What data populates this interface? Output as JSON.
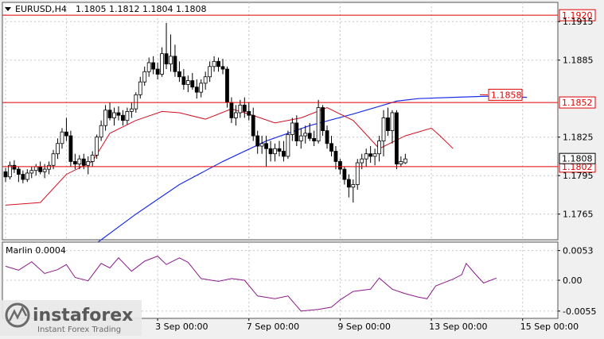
{
  "header": {
    "symbol_text": "EURUSD,H4",
    "ohlc_text": "1.1805 1.1812 1.1804 1.1808"
  },
  "indicator_label": "Marlin 0.0004",
  "colors": {
    "background": "#f0f0f0",
    "plot_bg": "#ffffff",
    "bull_body": "#ffffff",
    "bear_body": "#000000",
    "red_line": "#e00000",
    "red_ma": "#d01020",
    "blue_ma": "#1c2ee8",
    "oscillator": "#8b1a8b",
    "grid": "#c8c8c8",
    "box_fill": "#ffffff"
  },
  "watermark": {
    "brand": "instaforex",
    "tagline": "Instant Forex Trading",
    "icon": "instaforex-logo-icon"
  },
  "chart_data": [
    {
      "type": "candlestick",
      "symbol": "EURUSD",
      "timeframe": "H4",
      "ylim": [
        1.1745,
        1.193
      ],
      "y_ticks": [
        "1.1915",
        "1.1885",
        "1.1825",
        "1.1795",
        "1.1765"
      ],
      "x_ticks": [
        "3 Sep 00:00",
        "7 Sep 00:00",
        "9 Sep 00:00",
        "13 Sep 00:00",
        "15 Sep 00:00"
      ],
      "x_tick_bars": [
        35,
        56,
        77,
        98,
        119
      ],
      "horizontal_levels": [
        {
          "label": "1.1920",
          "value": 1.192
        },
        {
          "label": "1.1852",
          "value": 1.1852
        },
        {
          "label": "1.1802",
          "value": 1.1802
        }
      ],
      "current_price": {
        "label": "1.1808",
        "value": 1.1808
      },
      "ma_blue_label": {
        "label": "1.1858",
        "value": 1.1858
      },
      "candles": [
        [
          1.1798,
          1.1801,
          1.179,
          1.1794
        ],
        [
          1.1794,
          1.1806,
          1.1792,
          1.1803
        ],
        [
          1.1803,
          1.1807,
          1.1797,
          1.18
        ],
        [
          1.18,
          1.1802,
          1.179,
          1.1796
        ],
        [
          1.1796,
          1.1799,
          1.1789,
          1.1792
        ],
        [
          1.1792,
          1.18,
          1.179,
          1.1797
        ],
        [
          1.1797,
          1.1802,
          1.1793,
          1.1799
        ],
        [
          1.1799,
          1.1804,
          1.1795,
          1.1802
        ],
        [
          1.1802,
          1.1806,
          1.1796,
          1.1798
        ],
        [
          1.1798,
          1.1804,
          1.1793,
          1.18
        ],
        [
          1.18,
          1.1806,
          1.1796,
          1.1803
        ],
        [
          1.1803,
          1.1815,
          1.18,
          1.1812
        ],
        [
          1.1812,
          1.1824,
          1.1808,
          1.182
        ],
        [
          1.182,
          1.1832,
          1.1816,
          1.1829
        ],
        [
          1.1829,
          1.184,
          1.1822,
          1.1826
        ],
        [
          1.1826,
          1.183,
          1.1802,
          1.1806
        ],
        [
          1.1806,
          1.1812,
          1.18,
          1.1804
        ],
        [
          1.1804,
          1.1811,
          1.18,
          1.1808
        ],
        [
          1.1808,
          1.1812,
          1.18,
          1.1803
        ],
        [
          1.1803,
          1.181,
          1.1796,
          1.1806
        ],
        [
          1.1806,
          1.1814,
          1.1802,
          1.1811
        ],
        [
          1.1811,
          1.1827,
          1.1808,
          1.1825
        ],
        [
          1.1825,
          1.1838,
          1.1822,
          1.1834
        ],
        [
          1.1834,
          1.185,
          1.183,
          1.1846
        ],
        [
          1.1846,
          1.1852,
          1.1838,
          1.184
        ],
        [
          1.184,
          1.1848,
          1.1834,
          1.1844
        ],
        [
          1.1844,
          1.1849,
          1.1838,
          1.1842
        ],
        [
          1.1842,
          1.1846,
          1.1834,
          1.1838
        ],
        [
          1.1838,
          1.1848,
          1.1835,
          1.1845
        ],
        [
          1.1845,
          1.1852,
          1.184,
          1.1847
        ],
        [
          1.1847,
          1.186,
          1.1844,
          1.1858
        ],
        [
          1.1858,
          1.1872,
          1.1855,
          1.1868
        ],
        [
          1.1868,
          1.188,
          1.1865,
          1.1876
        ],
        [
          1.1876,
          1.1887,
          1.1872,
          1.1883
        ],
        [
          1.1883,
          1.1888,
          1.1874,
          1.1878
        ],
        [
          1.1878,
          1.1883,
          1.187,
          1.1874
        ],
        [
          1.1874,
          1.1895,
          1.1872,
          1.189
        ],
        [
          1.189,
          1.1914,
          1.1878,
          1.1882
        ],
        [
          1.1882,
          1.1905,
          1.1876,
          1.1888
        ],
        [
          1.1888,
          1.1897,
          1.1872,
          1.1876
        ],
        [
          1.1876,
          1.1884,
          1.1868,
          1.1872
        ],
        [
          1.1872,
          1.1878,
          1.1862,
          1.1866
        ],
        [
          1.1866,
          1.1873,
          1.186,
          1.1869
        ],
        [
          1.1869,
          1.1875,
          1.1862,
          1.1864
        ],
        [
          1.1864,
          1.187,
          1.1855,
          1.186
        ],
        [
          1.186,
          1.187,
          1.1856,
          1.1867
        ],
        [
          1.1867,
          1.1876,
          1.1862,
          1.1872
        ],
        [
          1.1872,
          1.1884,
          1.1868,
          1.188
        ],
        [
          1.188,
          1.1888,
          1.1876,
          1.1884
        ],
        [
          1.1884,
          1.1887,
          1.1876,
          1.188
        ],
        [
          1.188,
          1.1886,
          1.1874,
          1.1878
        ],
        [
          1.1878,
          1.188,
          1.1848,
          1.1852
        ],
        [
          1.1852,
          1.1856,
          1.1836,
          1.184
        ],
        [
          1.184,
          1.185,
          1.1834,
          1.1844
        ],
        [
          1.1844,
          1.1854,
          1.184,
          1.185
        ],
        [
          1.185,
          1.1856,
          1.184,
          1.1845
        ],
        [
          1.1845,
          1.1852,
          1.1838,
          1.1842
        ],
        [
          1.1842,
          1.1848,
          1.1822,
          1.1826
        ],
        [
          1.1826,
          1.183,
          1.1812,
          1.1818
        ],
        [
          1.1818,
          1.1826,
          1.1812,
          1.182
        ],
        [
          1.182,
          1.1826,
          1.1802,
          1.1816
        ],
        [
          1.1816,
          1.1822,
          1.1806,
          1.1812
        ],
        [
          1.1812,
          1.182,
          1.1806,
          1.1816
        ],
        [
          1.1816,
          1.1822,
          1.181,
          1.1814
        ],
        [
          1.1814,
          1.1822,
          1.1806,
          1.181
        ],
        [
          1.181,
          1.183,
          1.1808,
          1.1827
        ],
        [
          1.1827,
          1.184,
          1.1822,
          1.1836
        ],
        [
          1.1836,
          1.1842,
          1.1818,
          1.1822
        ],
        [
          1.1822,
          1.1832,
          1.1816,
          1.1826
        ],
        [
          1.1826,
          1.1834,
          1.182,
          1.1828
        ],
        [
          1.1828,
          1.1836,
          1.1822,
          1.1824
        ],
        [
          1.1824,
          1.183,
          1.1818,
          1.1822
        ],
        [
          1.1822,
          1.1854,
          1.182,
          1.1848
        ],
        [
          1.1848,
          1.185,
          1.1826,
          1.183
        ],
        [
          1.183,
          1.1834,
          1.1816,
          1.182
        ],
        [
          1.182,
          1.1826,
          1.181,
          1.1814
        ],
        [
          1.1814,
          1.1818,
          1.18,
          1.1806
        ],
        [
          1.1806,
          1.1808,
          1.1796,
          1.18
        ],
        [
          1.18,
          1.1802,
          1.1788,
          1.1792
        ],
        [
          1.1792,
          1.1796,
          1.1778,
          1.1786
        ],
        [
          1.1786,
          1.1792,
          1.1774,
          1.1788
        ],
        [
          1.1788,
          1.1808,
          1.1784,
          1.1805
        ],
        [
          1.1805,
          1.1812,
          1.18,
          1.1808
        ],
        [
          1.1808,
          1.1816,
          1.1802,
          1.1812
        ],
        [
          1.1812,
          1.1818,
          1.1805,
          1.181
        ],
        [
          1.181,
          1.1816,
          1.1803,
          1.1812
        ],
        [
          1.1812,
          1.1826,
          1.1806,
          1.1822
        ],
        [
          1.1822,
          1.1846,
          1.181,
          1.184
        ],
        [
          1.184,
          1.1848,
          1.1826,
          1.183
        ],
        [
          1.183,
          1.1846,
          1.182,
          1.1844
        ],
        [
          1.1844,
          1.1846,
          1.18,
          1.1804
        ],
        [
          1.1804,
          1.181,
          1.1802,
          1.1806
        ],
        [
          1.1805,
          1.1812,
          1.1804,
          1.1808
        ]
      ],
      "blue_ma": [
        [
          18,
          1.1735
        ],
        [
          30,
          1.1765
        ],
        [
          40,
          1.1788
        ],
        [
          50,
          1.1806
        ],
        [
          60,
          1.1822
        ],
        [
          70,
          1.1834
        ],
        [
          80,
          1.1843
        ],
        [
          86,
          1.1849
        ],
        [
          90,
          1.1853
        ],
        [
          95,
          1.1855
        ],
        [
          103,
          1.1856
        ],
        [
          112,
          1.1857
        ],
        [
          120,
          1.1856
        ]
      ],
      "red_ma": [
        [
          0,
          1.1772
        ],
        [
          8,
          1.1774
        ],
        [
          14,
          1.1796
        ],
        [
          20,
          1.1806
        ],
        [
          24,
          1.1828
        ],
        [
          30,
          1.1838
        ],
        [
          36,
          1.1845
        ],
        [
          40,
          1.1844
        ],
        [
          46,
          1.1839
        ],
        [
          52,
          1.1847
        ],
        [
          56,
          1.1843
        ],
        [
          62,
          1.1836
        ],
        [
          68,
          1.184
        ],
        [
          74,
          1.1848
        ],
        [
          80,
          1.1838
        ],
        [
          86,
          1.1816
        ],
        [
          92,
          1.1826
        ],
        [
          98,
          1.1832
        ],
        [
          100,
          1.1826
        ],
        [
          103,
          1.1816
        ]
      ]
    },
    {
      "type": "line",
      "name": "Marlin",
      "ylim": [
        -0.0068,
        0.0068
      ],
      "y_ticks": [
        "0.0053",
        "0.00",
        "-0.0055"
      ],
      "points": [
        [
          0,
          0.0025
        ],
        [
          3,
          0.0018
        ],
        [
          6,
          0.0033
        ],
        [
          9,
          0.0012
        ],
        [
          12,
          0.0019
        ],
        [
          14,
          0.0028
        ],
        [
          16,
          0.0005
        ],
        [
          19,
          -0.0001
        ],
        [
          22,
          0.003
        ],
        [
          24,
          0.0022
        ],
        [
          26,
          0.004
        ],
        [
          29,
          0.0016
        ],
        [
          32,
          0.0034
        ],
        [
          35,
          0.0043
        ],
        [
          37,
          0.0028
        ],
        [
          40,
          0.004
        ],
        [
          42,
          0.0032
        ],
        [
          45,
          0.0003
        ],
        [
          49,
          -0.0002
        ],
        [
          52,
          0.0003
        ],
        [
          55,
          0.0
        ],
        [
          58,
          -0.0028
        ],
        [
          62,
          -0.0033
        ],
        [
          65,
          -0.0028
        ],
        [
          68,
          -0.0055
        ],
        [
          72,
          -0.0052
        ],
        [
          75,
          -0.0048
        ],
        [
          77,
          -0.0035
        ],
        [
          80,
          -0.002
        ],
        [
          84,
          -0.0016
        ],
        [
          86,
          0.0004
        ],
        [
          89,
          -0.0016
        ],
        [
          92,
          -0.0024
        ],
        [
          95,
          -0.003
        ],
        [
          97,
          -0.0033
        ],
        [
          99,
          -0.001
        ],
        [
          101,
          -0.0004
        ],
        [
          103,
          0.0002
        ],
        [
          105,
          0.001
        ],
        [
          106,
          0.003
        ],
        [
          108,
          0.0012
        ],
        [
          110,
          -0.0005
        ],
        [
          113,
          0.0004
        ]
      ]
    }
  ]
}
